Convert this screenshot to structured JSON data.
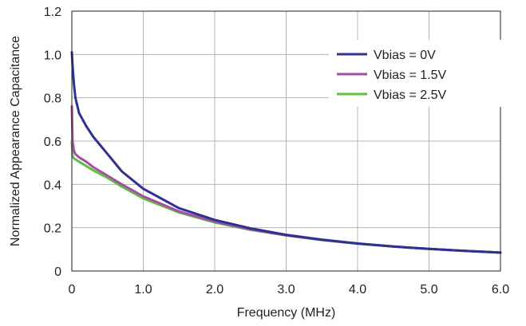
{
  "chart_data": {
    "type": "line",
    "xlabel": "Frequency (MHz)",
    "ylabel": "Normalized Appearance Capacitance",
    "xlim": [
      0,
      6
    ],
    "ylim": [
      0,
      1.2
    ],
    "x_ticks": [
      0,
      1,
      2,
      3,
      4,
      5,
      6
    ],
    "x_tick_labels": [
      "0",
      "1.0",
      "2.0",
      "3.0",
      "4.0",
      "5.0",
      "6.0"
    ],
    "y_ticks": [
      0,
      0.2,
      0.4,
      0.6,
      0.8,
      1.0,
      1.2
    ],
    "y_tick_labels": [
      "0",
      "0.2",
      "0.4",
      "0.6",
      "0.8",
      "1.0",
      "1.2"
    ],
    "grid": true,
    "legend_position": "top-right",
    "series": [
      {
        "name": "Vbias = 0V",
        "color": "#2e3192",
        "x": [
          0,
          0.01,
          0.03,
          0.05,
          0.1,
          0.2,
          0.3,
          0.5,
          0.7,
          1.0,
          1.5,
          2.0,
          2.5,
          3.0,
          3.5,
          4.0,
          4.5,
          5.0,
          5.5,
          6.0
        ],
        "y": [
          1.01,
          0.95,
          0.86,
          0.8,
          0.73,
          0.67,
          0.62,
          0.54,
          0.46,
          0.38,
          0.29,
          0.236,
          0.197,
          0.167,
          0.145,
          0.127,
          0.113,
          0.102,
          0.093,
          0.085
        ]
      },
      {
        "name": "Vbias = 1.5V",
        "color": "#a54ea8",
        "x": [
          0,
          0.01,
          0.03,
          0.05,
          0.1,
          0.2,
          0.3,
          0.5,
          0.7,
          1.0,
          1.5,
          2.0,
          2.5,
          3.0,
          3.5,
          4.0,
          4.5,
          5.0,
          5.5,
          6.0
        ],
        "y": [
          0.76,
          0.6,
          0.555,
          0.54,
          0.525,
          0.505,
          0.48,
          0.44,
          0.4,
          0.345,
          0.275,
          0.228,
          0.192,
          0.165,
          0.144,
          0.127,
          0.113,
          0.102,
          0.093,
          0.085
        ]
      },
      {
        "name": "Vbias = 2.5V",
        "color": "#5fbf41",
        "x": [
          0,
          0.01,
          0.03,
          0.05,
          0.1,
          0.2,
          0.3,
          0.5,
          0.7,
          1.0,
          1.5,
          2.0,
          2.5,
          3.0,
          3.5,
          4.0,
          4.5,
          5.0,
          5.5,
          6.0
        ],
        "y": [
          0.6,
          0.53,
          0.52,
          0.515,
          0.505,
          0.485,
          0.465,
          0.43,
          0.39,
          0.335,
          0.27,
          0.224,
          0.19,
          0.164,
          0.143,
          0.126,
          0.113,
          0.102,
          0.093,
          0.085
        ]
      }
    ]
  }
}
